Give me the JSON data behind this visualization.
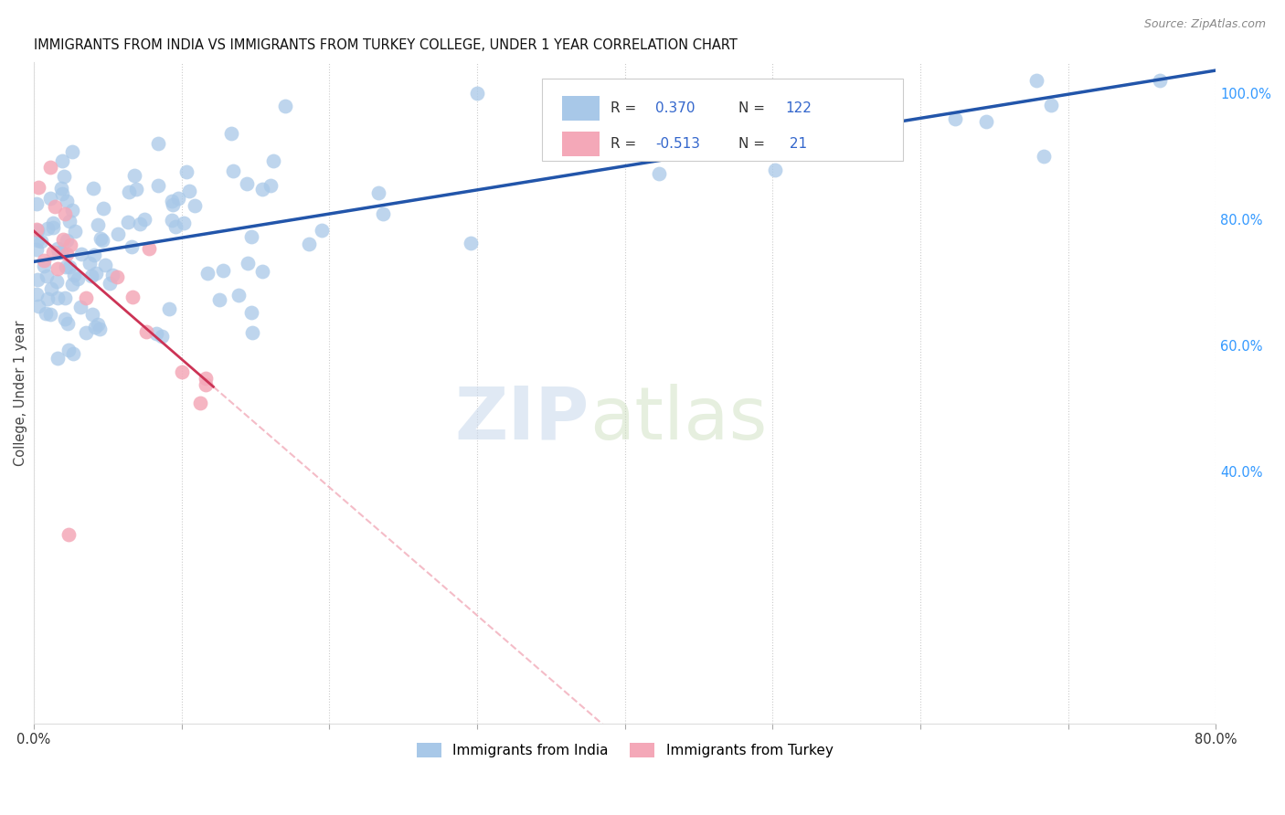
{
  "title": "IMMIGRANTS FROM INDIA VS IMMIGRANTS FROM TURKEY COLLEGE, UNDER 1 YEAR CORRELATION CHART",
  "source": "Source: ZipAtlas.com",
  "ylabel": "College, Under 1 year",
  "xlim": [
    0.0,
    0.8
  ],
  "ylim": [
    0.0,
    1.05
  ],
  "india_R": 0.37,
  "india_N": 122,
  "turkey_R": -0.513,
  "turkey_N": 21,
  "india_color": "#a8c8e8",
  "turkey_color": "#f4a8b8",
  "india_line_color": "#2255aa",
  "turkey_line_solid_color": "#cc3355",
  "turkey_line_dashed_color": "#f0a0b0",
  "watermark_zip": "ZIP",
  "watermark_atlas": "atlas",
  "legend_value_color": "#3366cc",
  "legend_label_color": "#333333",
  "ytick_right_positions": [
    1.0,
    0.8,
    0.6,
    0.4
  ],
  "ytick_right_labels": [
    "100.0%",
    "80.0%",
    "60.0%",
    "40.0%"
  ],
  "xtick_positions": [
    0.0,
    0.1,
    0.2,
    0.3,
    0.4,
    0.5,
    0.6,
    0.7,
    0.8
  ],
  "xtick_labels": [
    "0.0%",
    "",
    "",
    "",
    "",
    "",
    "",
    "",
    "80.0%"
  ]
}
